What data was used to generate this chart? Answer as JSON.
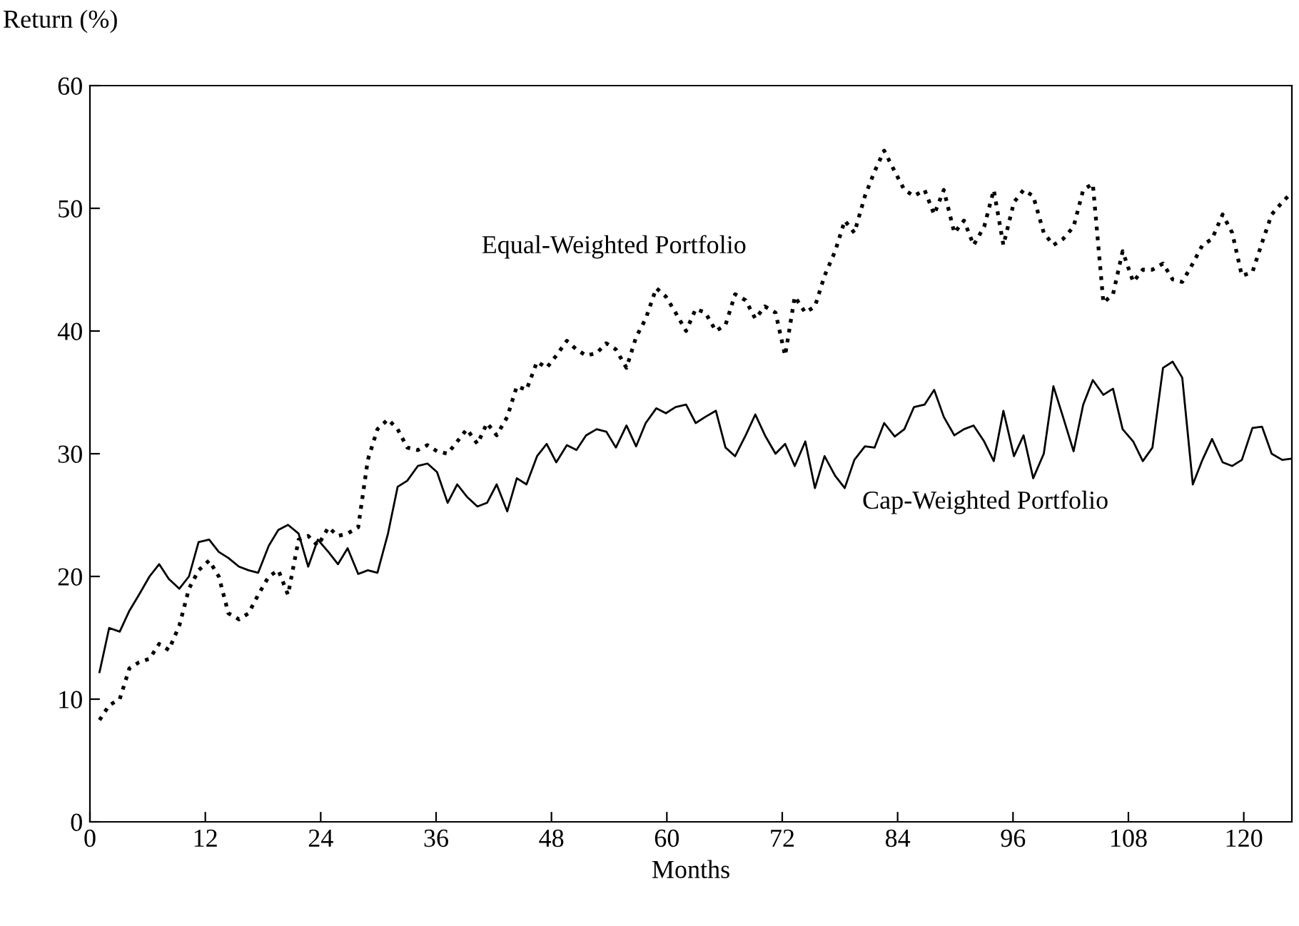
{
  "chart_data": {
    "type": "line",
    "ylabel": "Return (%)",
    "xlabel": "Months",
    "xlim": [
      0,
      125
    ],
    "ylim": [
      0,
      60
    ],
    "xticks": [
      0,
      12,
      24,
      36,
      48,
      60,
      72,
      84,
      96,
      108,
      120
    ],
    "yticks": [
      0,
      10,
      20,
      30,
      40,
      50,
      60
    ],
    "grid": false,
    "marker": "none",
    "x": [
      1,
      2,
      3.1,
      4.1,
      5.1,
      6.2,
      7.2,
      8.2,
      9.3,
      10.3,
      11.3,
      12.4,
      13.4,
      14.4,
      15.5,
      16.5,
      17.5,
      18.6,
      19.6,
      20.6,
      21.7,
      22.7,
      23.7,
      24.8,
      25.8,
      26.8,
      27.9,
      28.9,
      29.9,
      31,
      32,
      33,
      34.1,
      35.1,
      36.1,
      37.2,
      38.2,
      39.2,
      40.3,
      41.3,
      42.3,
      43.4,
      44.4,
      45.4,
      46.5,
      47.5,
      48.5,
      49.6,
      50.6,
      51.6,
      52.7,
      53.7,
      54.7,
      55.8,
      56.8,
      57.8,
      58.9,
      59.9,
      60.9,
      62,
      63,
      64,
      65.1,
      66.1,
      67.1,
      68.2,
      69.2,
      70.2,
      71.3,
      72.3,
      73.3,
      74.4,
      75.4,
      76.4,
      77.5,
      78.5,
      79.5,
      80.6,
      81.6,
      82.6,
      83.7,
      84.7,
      85.7,
      86.8,
      87.8,
      88.8,
      89.9,
      90.9,
      91.9,
      93,
      94,
      95,
      96.1,
      97.1,
      98.1,
      99.2,
      100.2,
      101.2,
      102.3,
      103.3,
      104.3,
      105.4,
      106.4,
      107.4,
      108.5,
      109.5,
      110.5,
      111.6,
      112.6,
      113.6,
      114.7,
      115.7,
      116.7,
      117.8,
      118.8,
      119.8,
      120.9,
      121.9,
      122.9,
      124,
      125
    ],
    "series": [
      {
        "name": "Cap-Weighted Portfolio",
        "color": "#000000",
        "line_style": "solid",
        "values": [
          12.2,
          15.8,
          15.5,
          17.2,
          18.5,
          20,
          21,
          19.8,
          19,
          20,
          22.8,
          23,
          22,
          21.5,
          20.8,
          20.5,
          20.3,
          22.5,
          23.8,
          24.2,
          23.5,
          20.8,
          23,
          22,
          21,
          22.3,
          20.2,
          20.5,
          20.3,
          23.5,
          27.3,
          27.8,
          29,
          29.2,
          28.5,
          26,
          27.5,
          26.5,
          25.7,
          26,
          27.5,
          25.3,
          28,
          27.5,
          29.8,
          30.8,
          29.3,
          30.7,
          30.3,
          31.5,
          32,
          31.8,
          30.5,
          32.3,
          30.6,
          32.5,
          33.7,
          33.3,
          33.8,
          34,
          32.5,
          33,
          33.5,
          30.5,
          29.8,
          31.5,
          33.2,
          31.5,
          30,
          30.8,
          29,
          31,
          27.2,
          29.8,
          28.2,
          27.2,
          29.5,
          30.6,
          30.5,
          32.5,
          31.4,
          32,
          33.8,
          34,
          35.2,
          33,
          31.5,
          32,
          32.3,
          31,
          29.4,
          33.5,
          29.8,
          31.5,
          28,
          30,
          35.5,
          33,
          30.2,
          34,
          36,
          34.8,
          35.3,
          32,
          31,
          29.4,
          30.5,
          37,
          37.5,
          36.2,
          27.5,
          29.5,
          31.2,
          29.3,
          29,
          29.5,
          32.1,
          32.2,
          30,
          29.5,
          29.6
        ]
      },
      {
        "name": "Equal-Weighted Portfolio",
        "color": "#000000",
        "line_style": "dotted",
        "values": [
          8.3,
          9.5,
          10,
          12.5,
          13,
          13.3,
          14.5,
          14,
          16,
          19,
          20.5,
          21.3,
          20,
          17,
          16.5,
          17,
          18.5,
          20,
          20.5,
          18.5,
          23,
          23.3,
          22.5,
          24,
          23.3,
          23.5,
          24,
          29.5,
          32,
          32.8,
          32,
          30.5,
          30.3,
          30.7,
          30.2,
          30,
          31,
          32,
          30.8,
          32.5,
          31.5,
          33,
          35.5,
          35.2,
          37.5,
          37,
          38,
          39.2,
          38.5,
          38,
          38.2,
          39,
          38.5,
          37,
          39.5,
          41,
          43.5,
          42.8,
          41.5,
          40,
          41.8,
          41.5,
          40,
          40.5,
          43,
          42.5,
          41,
          42,
          41.5,
          38,
          42.8,
          41.5,
          42,
          44.5,
          46.5,
          49,
          48,
          51,
          53,
          54.7,
          53,
          51.5,
          51,
          51.5,
          49.5,
          51.5,
          48,
          49,
          47,
          48.5,
          51.5,
          47,
          50.5,
          51.5,
          51,
          48,
          47,
          47.5,
          48.5,
          51.5,
          52,
          42.3,
          43,
          46.5,
          44,
          45,
          45,
          45.5,
          44.2,
          44,
          45.5,
          47,
          47.5,
          49.5,
          48,
          44.5,
          44.8,
          47.2,
          49.5,
          50.5,
          51.3
        ]
      }
    ]
  }
}
